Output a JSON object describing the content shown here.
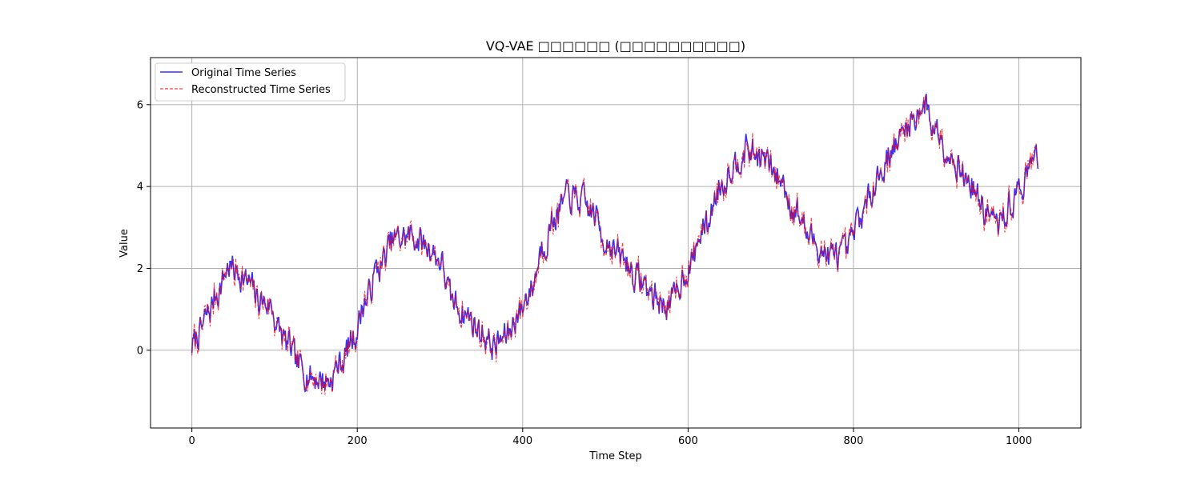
{
  "chart_data": {
    "type": "line",
    "title": "VQ-VAE □□□□□□ (□□□□□□□□□□)",
    "xlabel": "Time Step",
    "ylabel": "Value",
    "xlim": [
      -50,
      1075
    ],
    "ylim": [
      -1.9,
      7.15
    ],
    "xticks": [
      0,
      200,
      400,
      600,
      800,
      1000
    ],
    "yticks": [
      0,
      2,
      4,
      6
    ],
    "grid": true,
    "legend_position": "upper-left",
    "n_points": 1024,
    "x_range": [
      0,
      1023
    ],
    "trend_anchors": {
      "x": [
        0,
        10,
        20,
        30,
        45,
        55,
        70,
        80,
        95,
        105,
        115,
        130,
        145,
        165,
        180,
        195,
        210,
        225,
        245,
        265,
        285,
        300,
        315,
        330,
        350,
        365,
        380,
        395,
        410,
        425,
        440,
        455,
        470,
        485,
        500,
        520,
        540,
        560,
        570,
        580,
        600,
        620,
        640,
        655,
        670,
        690,
        710,
        730,
        750,
        770,
        790,
        810,
        830,
        850,
        870,
        885,
        900,
        920,
        940,
        960,
        975,
        990,
        1005,
        1023
      ],
      "y": [
        0.1,
        0.45,
        0.9,
        1.4,
        2.05,
        1.9,
        1.6,
        1.25,
        1.1,
        0.5,
        0.15,
        -0.4,
        -0.65,
        -0.75,
        -0.3,
        0.3,
        1.2,
        2.0,
        2.7,
        2.8,
        2.55,
        2.2,
        1.2,
        0.9,
        0.45,
        0.1,
        0.35,
        0.9,
        1.5,
        2.6,
        3.3,
        3.75,
        3.65,
        3.35,
        2.7,
        2.25,
        1.75,
        1.3,
        1.1,
        1.2,
        2.0,
        3.0,
        4.05,
        4.55,
        4.9,
        4.7,
        4.2,
        3.4,
        2.7,
        2.3,
        2.35,
        3.3,
        4.3,
        5.0,
        5.6,
        6.0,
        5.4,
        4.7,
        4.1,
        3.4,
        3.05,
        3.55,
        4.1,
        4.8
      ]
    },
    "series": [
      {
        "name": "Original Time Series",
        "color": "#0000ff",
        "opacity": 0.8,
        "style": "solid",
        "noise_amplitude": 0.32,
        "seed": 7
      },
      {
        "name": "Reconstructed Time Series",
        "color": "#ff0000",
        "opacity": 0.75,
        "style": "dashed",
        "noise_amplitude": 0.3,
        "seed": 7
      }
    ]
  }
}
